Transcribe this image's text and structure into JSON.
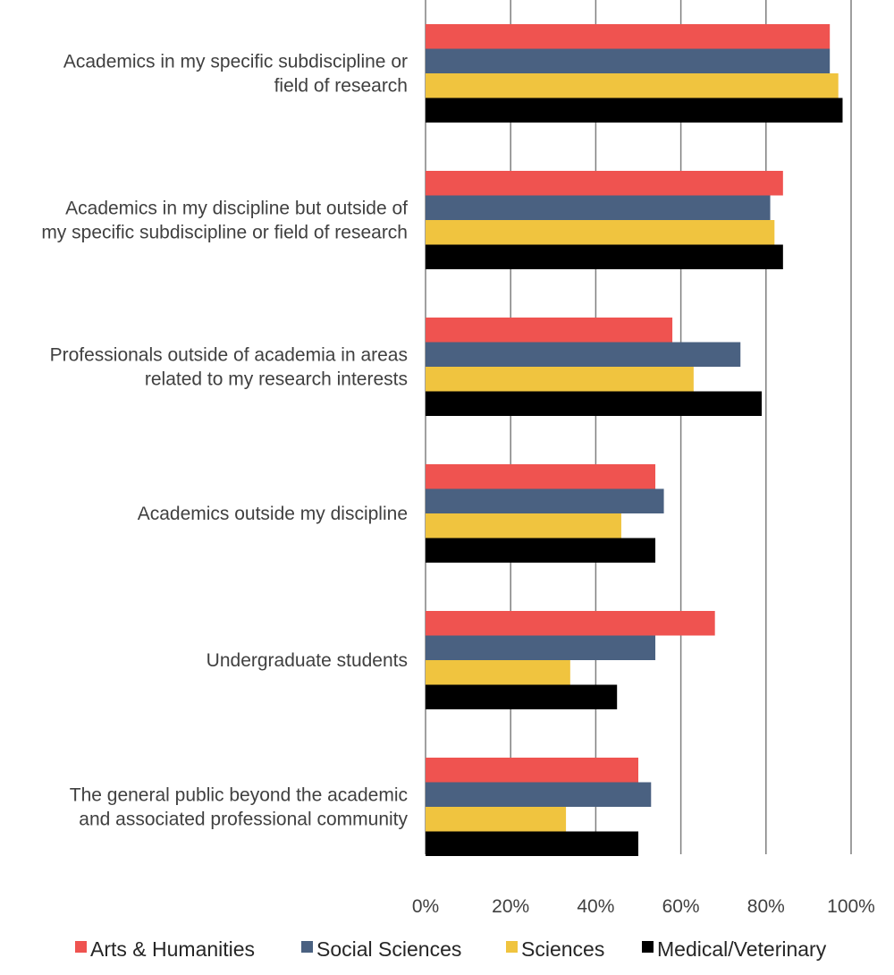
{
  "chart_data": {
    "type": "bar",
    "orientation": "horizontal",
    "categories": [
      [
        "Academics in my specific subdiscipline or",
        "field of research"
      ],
      [
        "Academics in my discipline but outside of",
        "my specific subdiscipline or field of research"
      ],
      [
        "Professionals outside of academia in areas",
        "related to my research interests"
      ],
      [
        "Academics outside my discipline"
      ],
      [
        "Undergraduate students"
      ],
      [
        "The general public beyond the academic",
        "and associated professional community"
      ]
    ],
    "series": [
      {
        "name": "Arts & Humanities",
        "color": "#EF5350",
        "values": [
          95,
          84,
          58,
          54,
          68,
          50
        ]
      },
      {
        "name": "Social Sciences",
        "color": "#4A6181",
        "values": [
          95,
          81,
          74,
          56,
          54,
          53
        ]
      },
      {
        "name": "Sciences",
        "color": "#F0C43F",
        "values": [
          97,
          82,
          63,
          46,
          34,
          33
        ]
      },
      {
        "name": "Medical/Veterinary",
        "color": "#000000",
        "values": [
          98,
          84,
          79,
          54,
          45,
          50
        ]
      }
    ],
    "xlim": [
      0,
      100
    ],
    "xticks": [
      "0%",
      "20%",
      "40%",
      "60%",
      "80%",
      "100%"
    ],
    "grid": true,
    "legend": "bottom",
    "title": "",
    "xlabel": "",
    "ylabel": ""
  }
}
